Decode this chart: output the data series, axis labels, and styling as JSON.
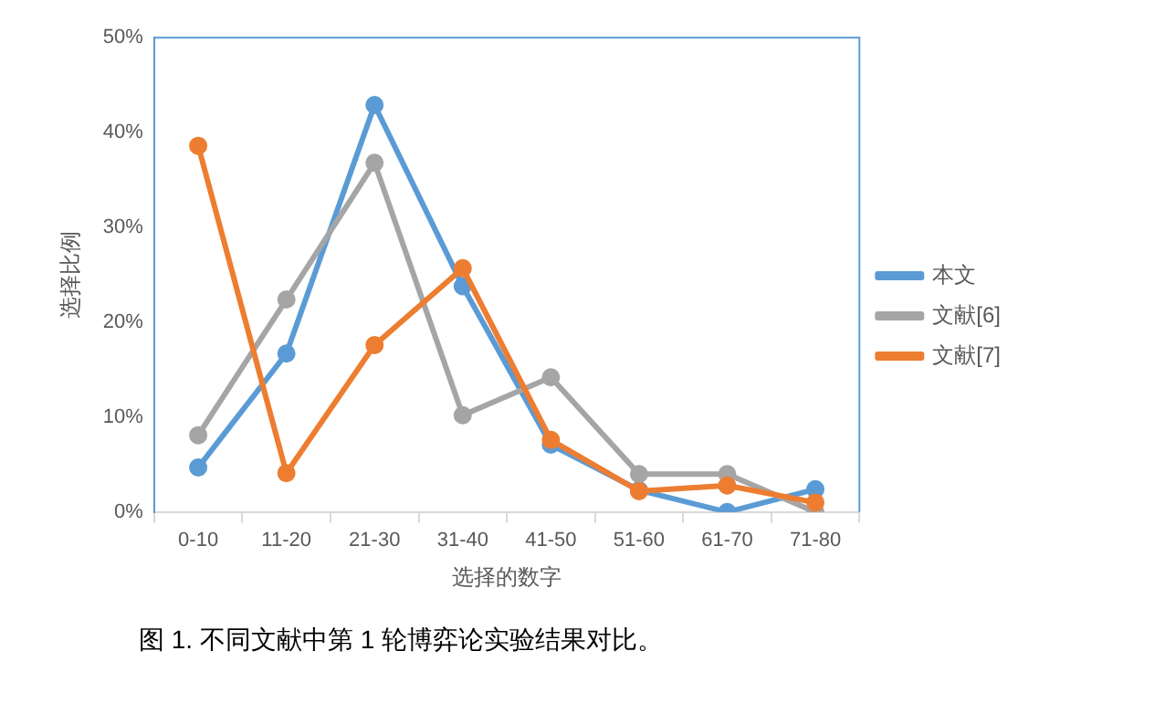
{
  "chart_data": {
    "type": "line",
    "xlabel": "选择的数字",
    "ylabel": "选择比例",
    "categories": [
      "0-10",
      "11-20",
      "21-30",
      "31-40",
      "41-50",
      "51-60",
      "61-70",
      "71-80"
    ],
    "series": [
      {
        "name": "本文",
        "color": "#5b9bd5",
        "values": [
          4.7,
          16.7,
          42.9,
          23.8,
          7.1,
          2.3,
          0,
          2.4
        ]
      },
      {
        "name": "文献[6]",
        "color": "#a5a5a5",
        "values": [
          8.1,
          22.4,
          36.8,
          10.2,
          14.2,
          4.0,
          4.0,
          0
        ]
      },
      {
        "name": "文献[7]",
        "color": "#ed7d31",
        "values": [
          38.6,
          4.1,
          17.6,
          25.7,
          7.6,
          2.2,
          2.8,
          1.0
        ]
      }
    ],
    "ylim": [
      0,
      50
    ],
    "yticks": [
      {
        "value": 0,
        "label": "0%"
      },
      {
        "value": 10,
        "label": "10%"
      },
      {
        "value": 20,
        "label": "20%"
      },
      {
        "value": 30,
        "label": "30%"
      },
      {
        "value": 40,
        "label": "40%"
      },
      {
        "value": 50,
        "label": "50%"
      }
    ],
    "grid": false,
    "legend": "right",
    "marker": "circle",
    "line_style": "solid",
    "annotations": [
      "图 1. 不同文献中第 1 轮博弈论实验结果对比。"
    ]
  }
}
